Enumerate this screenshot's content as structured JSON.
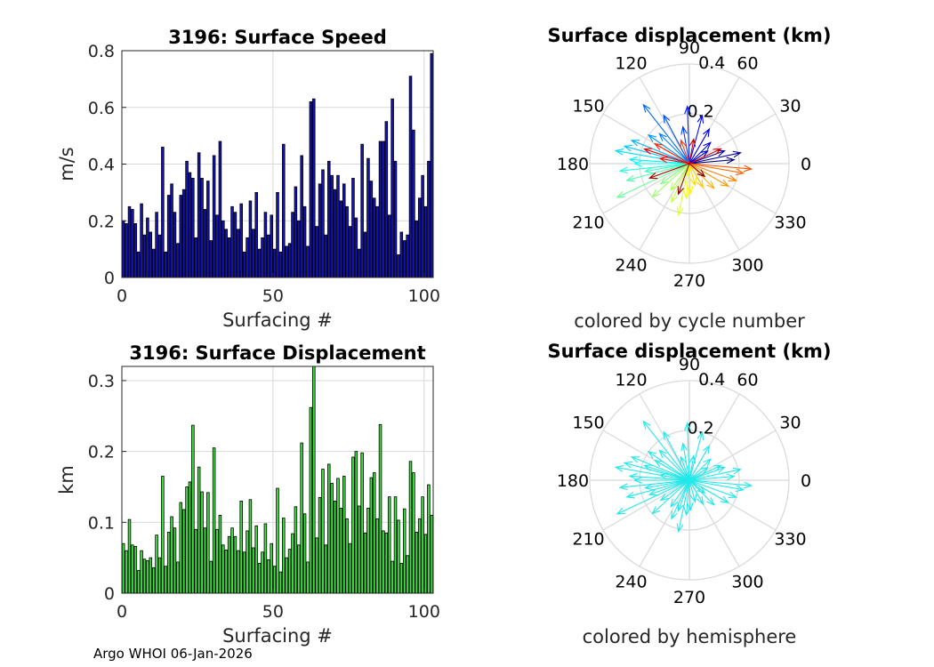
{
  "footer": "Argo WHOI 06-Jan-2026",
  "colors": {
    "speed_bar": "#1414b4",
    "disp_bar": "#3ee23e",
    "hemisphere_arrow": "#22e8ea",
    "grid": "#d8d8d8",
    "axis": "#262626"
  },
  "chart_data": [
    {
      "id": "speed",
      "type": "bar",
      "title": "3196: Surface Speed",
      "xlabel": "Surfacing #",
      "ylabel": "m/s",
      "xlim": [
        0,
        103
      ],
      "ylim": [
        0,
        0.8
      ],
      "xticks": [
        0,
        50,
        100
      ],
      "yticks": [
        0,
        0.2,
        0.4,
        0.6,
        0.8
      ],
      "grid": true,
      "color": "#1414b4",
      "values": [
        0.2,
        0.19,
        0.25,
        0.24,
        0.19,
        0.09,
        0.26,
        0.15,
        0.21,
        0.16,
        0.1,
        0.23,
        0.15,
        0.46,
        0.09,
        0.29,
        0.33,
        0.23,
        0.12,
        0.29,
        0.31,
        0.41,
        0.37,
        0.35,
        0.14,
        0.44,
        0.35,
        0.24,
        0.34,
        0.13,
        0.43,
        0.22,
        0.48,
        0.2,
        0.17,
        0.14,
        0.25,
        0.23,
        0.17,
        0.26,
        0.09,
        0.14,
        0.27,
        0.17,
        0.3,
        0.1,
        0.14,
        0.23,
        0.15,
        0.22,
        0.1,
        0.3,
        0.09,
        0.47,
        0.11,
        0.12,
        0.23,
        0.32,
        0.2,
        0.43,
        0.25,
        0.11,
        0.62,
        0.63,
        0.18,
        0.33,
        0.38,
        0.15,
        0.41,
        0.36,
        0.31,
        0.36,
        0.27,
        0.33,
        0.25,
        0.18,
        0.35,
        0.21,
        0.1,
        0.47,
        0.16,
        0.42,
        0.34,
        0.28,
        0.25,
        0.48,
        0.48,
        0.55,
        0.22,
        0.63,
        0.41,
        0.08,
        0.16,
        0.13,
        0.15,
        0.71,
        0.52,
        0.2,
        0.28,
        0.36,
        0.25,
        0.41,
        0.79
      ]
    },
    {
      "id": "displacement",
      "type": "bar",
      "title": "3196: Surface Displacement",
      "xlabel": "Surfacing #",
      "ylabel": "km",
      "xlim": [
        0,
        103
      ],
      "ylim": [
        0,
        0.32
      ],
      "xticks": [
        0,
        50,
        100
      ],
      "yticks": [
        0,
        0.1,
        0.2,
        0.3
      ],
      "grid": true,
      "color": "#3ee23e",
      "values": [
        0.07,
        0.06,
        0.104,
        0.068,
        0.066,
        0.032,
        0.06,
        0.048,
        0.046,
        0.05,
        0.036,
        0.082,
        0.05,
        0.165,
        0.038,
        0.086,
        0.108,
        0.092,
        0.044,
        0.128,
        0.118,
        0.15,
        0.157,
        0.237,
        0.09,
        0.178,
        0.143,
        0.092,
        0.142,
        0.045,
        0.205,
        0.09,
        0.11,
        0.068,
        0.061,
        0.08,
        0.092,
        0.08,
        0.06,
        0.13,
        0.058,
        0.088,
        0.132,
        0.064,
        0.095,
        0.042,
        0.058,
        0.098,
        0.047,
        0.07,
        0.038,
        0.148,
        0.03,
        0.106,
        0.05,
        0.062,
        0.084,
        0.122,
        0.068,
        0.212,
        0.112,
        0.044,
        0.262,
        0.32,
        0.078,
        0.135,
        0.175,
        0.068,
        0.182,
        0.155,
        0.13,
        0.162,
        0.12,
        0.165,
        0.105,
        0.07,
        0.192,
        0.2,
        0.123,
        0.198,
        0.085,
        0.12,
        0.163,
        0.17,
        0.105,
        0.238,
        0.088,
        0.085,
        0.136,
        0.045,
        0.136,
        0.103,
        0.042,
        0.119,
        0.053,
        0.186,
        0.17,
        0.086,
        0.105,
        0.136,
        0.083,
        0.153,
        0.11
      ]
    },
    {
      "id": "polar-cycle",
      "type": "scatter",
      "subtype": "polar-compass",
      "title": "Surface displacement (km)",
      "caption": "colored by cycle number",
      "rmax": 0.4,
      "rticks": [
        0.2,
        0.4
      ],
      "rtick_labels": [
        "0.2",
        "0.4"
      ],
      "theta_labels": [
        "0",
        "30",
        "60",
        "90",
        "120",
        "150",
        "180",
        "210",
        "240",
        "270",
        "300",
        "330"
      ],
      "color_mode": "cycle",
      "arrows": [
        [
          0.18,
          5
        ],
        [
          0.21,
          12
        ],
        [
          0.15,
          20
        ],
        [
          0.09,
          35
        ],
        [
          0.12,
          45
        ],
        [
          0.16,
          60
        ],
        [
          0.2,
          75
        ],
        [
          0.23,
          92
        ],
        [
          0.15,
          100
        ],
        [
          0.22,
          118
        ],
        [
          0.3,
          128
        ],
        [
          0.17,
          135
        ],
        [
          0.2,
          145
        ],
        [
          0.25,
          158
        ],
        [
          0.27,
          165
        ],
        [
          0.3,
          170
        ],
        [
          0.24,
          176
        ],
        [
          0.22,
          180
        ],
        [
          0.28,
          186
        ],
        [
          0.18,
          190
        ],
        [
          0.26,
          195
        ],
        [
          0.32,
          205
        ],
        [
          0.14,
          215
        ],
        [
          0.2,
          222
        ],
        [
          0.13,
          235
        ],
        [
          0.17,
          245
        ],
        [
          0.21,
          258
        ],
        [
          0.14,
          265
        ],
        [
          0.12,
          272
        ],
        [
          0.09,
          285
        ],
        [
          0.11,
          300
        ],
        [
          0.14,
          315
        ],
        [
          0.18,
          330
        ],
        [
          0.2,
          340
        ],
        [
          0.22,
          350
        ],
        [
          0.25,
          355
        ],
        [
          0.1,
          110
        ],
        [
          0.16,
          150
        ],
        [
          0.12,
          170
        ],
        [
          0.19,
          162
        ],
        [
          0.14,
          25
        ],
        [
          0.1,
          80
        ],
        [
          0.17,
          200
        ],
        [
          0.13,
          250
        ],
        [
          0.08,
          320
        ]
      ]
    },
    {
      "id": "polar-hemisphere",
      "type": "scatter",
      "subtype": "polar-compass",
      "title": "Surface displacement (km)",
      "caption": "colored by hemisphere",
      "rmax": 0.4,
      "rticks": [
        0.2,
        0.4
      ],
      "rtick_labels": [
        "0.2",
        "0.4"
      ],
      "theta_labels": [
        "0",
        "30",
        "60",
        "90",
        "120",
        "150",
        "180",
        "210",
        "240",
        "270",
        "300",
        "330"
      ],
      "color_mode": "single",
      "color": "#22e8ea",
      "arrows": [
        [
          0.18,
          5
        ],
        [
          0.21,
          12
        ],
        [
          0.15,
          20
        ],
        [
          0.09,
          35
        ],
        [
          0.12,
          45
        ],
        [
          0.16,
          60
        ],
        [
          0.2,
          75
        ],
        [
          0.23,
          92
        ],
        [
          0.15,
          100
        ],
        [
          0.22,
          118
        ],
        [
          0.3,
          128
        ],
        [
          0.17,
          135
        ],
        [
          0.2,
          145
        ],
        [
          0.25,
          158
        ],
        [
          0.27,
          165
        ],
        [
          0.3,
          170
        ],
        [
          0.24,
          176
        ],
        [
          0.22,
          180
        ],
        [
          0.28,
          186
        ],
        [
          0.18,
          190
        ],
        [
          0.26,
          195
        ],
        [
          0.32,
          205
        ],
        [
          0.14,
          215
        ],
        [
          0.2,
          222
        ],
        [
          0.13,
          235
        ],
        [
          0.17,
          245
        ],
        [
          0.21,
          258
        ],
        [
          0.14,
          265
        ],
        [
          0.12,
          272
        ],
        [
          0.09,
          285
        ],
        [
          0.11,
          300
        ],
        [
          0.14,
          315
        ],
        [
          0.18,
          330
        ],
        [
          0.2,
          340
        ],
        [
          0.22,
          350
        ],
        [
          0.25,
          355
        ],
        [
          0.1,
          110
        ],
        [
          0.16,
          150
        ],
        [
          0.12,
          170
        ],
        [
          0.19,
          162
        ],
        [
          0.14,
          25
        ],
        [
          0.1,
          80
        ],
        [
          0.17,
          200
        ],
        [
          0.13,
          250
        ],
        [
          0.08,
          320
        ]
      ]
    }
  ]
}
